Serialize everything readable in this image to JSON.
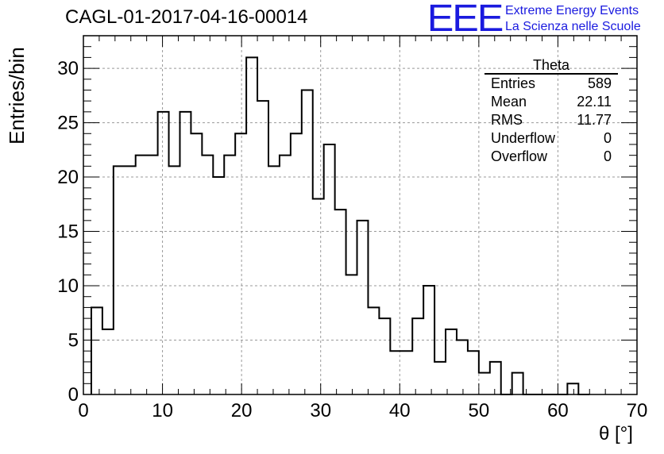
{
  "header": {
    "run_title": "CAGL-01-2017-04-16-00014"
  },
  "logo": {
    "mark": "EEE",
    "line1": "Extreme Energy Events",
    "line2": "La Scienza nelle Scuole"
  },
  "stats": {
    "title": "Theta",
    "rows": [
      {
        "label": "Entries",
        "value": "589"
      },
      {
        "label": "Mean",
        "value": "22.11"
      },
      {
        "label": "RMS",
        "value": "11.77"
      },
      {
        "label": "Underflow",
        "value": "0"
      },
      {
        "label": "Overflow",
        "value": "0"
      }
    ]
  },
  "chart_data": {
    "type": "histogram",
    "xlabel": "θ [°]",
    "ylabel": "Entries/bin",
    "xlim": [
      0,
      70
    ],
    "ylim": [
      0,
      33
    ],
    "grid": true,
    "bin_width": 1.4,
    "bin_start": 1.0,
    "values": [
      8,
      6,
      21,
      21,
      22,
      22,
      26,
      21,
      26,
      24,
      22,
      20,
      22,
      24,
      31,
      27,
      21,
      22,
      24,
      28,
      18,
      23,
      17,
      11,
      16,
      8,
      7,
      4,
      4,
      7,
      10,
      3,
      6,
      5,
      4,
      2,
      3,
      0,
      2,
      0,
      0,
      0,
      0,
      1,
      0
    ],
    "xticks": [
      0,
      10,
      20,
      30,
      40,
      50,
      60,
      70
    ],
    "yticks": [
      0,
      5,
      10,
      15,
      20,
      25,
      30
    ]
  }
}
